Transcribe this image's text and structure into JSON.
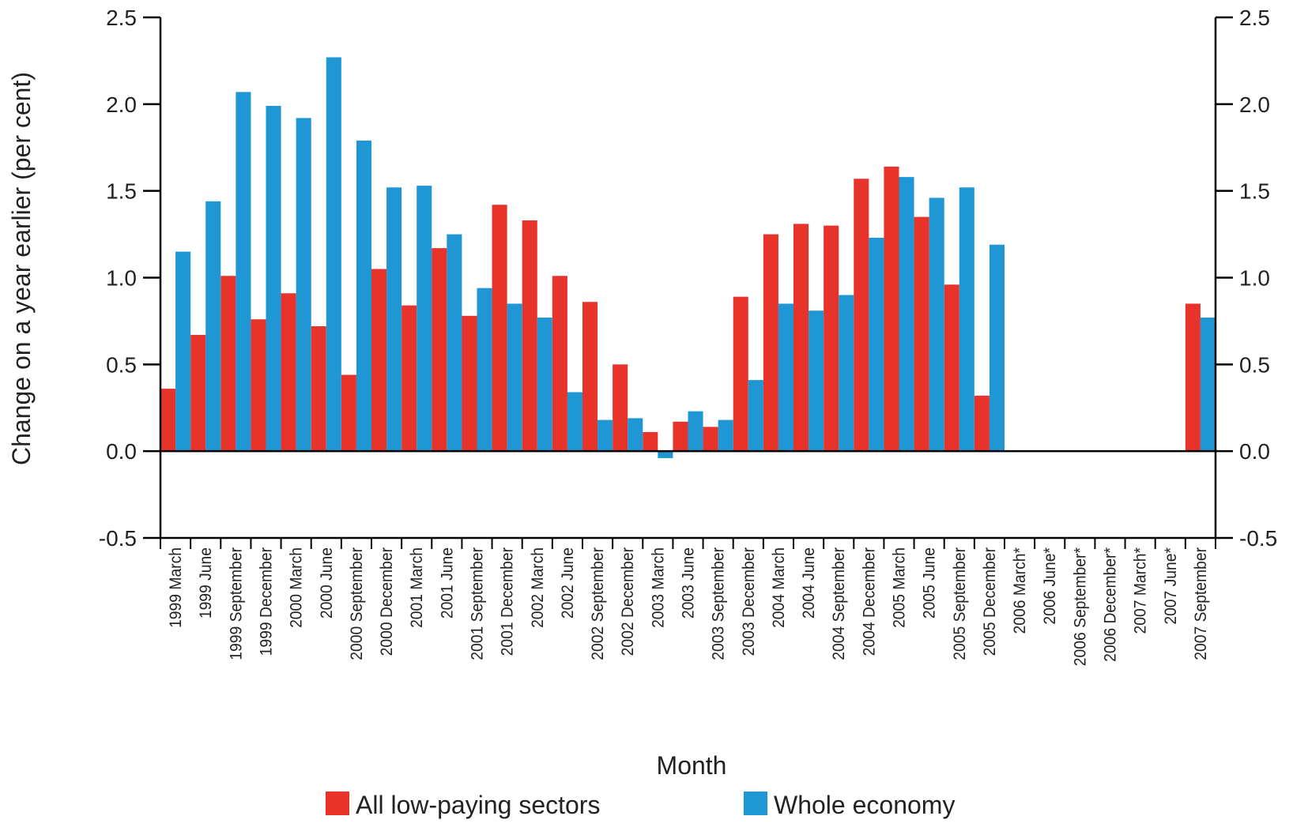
{
  "chart_data": {
    "type": "bar",
    "xlabel": "Month",
    "ylabel": "Change on a year earlier (per cent)",
    "ylim": [
      -0.5,
      2.5
    ],
    "yticks": [
      "2.5",
      "2.0",
      "1.5",
      "1.0",
      "0.5",
      "0.0",
      "-0.5"
    ],
    "ytick_values": [
      2.5,
      2.0,
      1.5,
      1.0,
      0.5,
      0.0,
      -0.5
    ],
    "secondary_y_axis": true,
    "grid": false,
    "legend_position": "bottom",
    "categories": [
      "1999 March",
      "1999 June",
      "1999 September",
      "1999 December",
      "2000 March",
      "2000 June",
      "2000 September",
      "2000 December",
      "2001 March",
      "2001 June",
      "2001 September",
      "2001 December",
      "2002 March",
      "2002 June",
      "2002 September",
      "2002 December",
      "2003 March",
      "2003 June",
      "2003 September",
      "2003 December",
      "2004 March",
      "2004 June",
      "2004 September",
      "2004 December",
      "2005 March",
      "2005 June",
      "2005 September",
      "2005 December",
      "2006 March*",
      "2006 June*",
      "2006 September*",
      "2006 December*",
      "2007 March*",
      "2007 June*",
      "2007 September"
    ],
    "series": [
      {
        "name": "All low-paying sectors",
        "color": "#e8332a",
        "values": [
          0.36,
          0.67,
          1.01,
          0.76,
          0.91,
          0.72,
          0.44,
          1.05,
          0.84,
          1.17,
          0.78,
          1.42,
          1.33,
          1.01,
          0.86,
          0.5,
          0.11,
          0.17,
          0.14,
          0.89,
          1.25,
          1.31,
          1.3,
          1.57,
          1.64,
          1.35,
          0.96,
          0.32,
          null,
          null,
          null,
          null,
          null,
          null,
          0.85
        ]
      },
      {
        "name": "Whole economy",
        "color": "#1f97d4",
        "values": [
          1.15,
          1.44,
          2.07,
          1.99,
          1.92,
          2.27,
          1.79,
          1.52,
          1.53,
          1.25,
          0.94,
          0.85,
          0.77,
          0.34,
          0.18,
          0.19,
          -0.04,
          0.23,
          0.18,
          0.41,
          0.85,
          0.81,
          0.9,
          1.23,
          1.58,
          1.46,
          1.52,
          1.19,
          null,
          null,
          null,
          null,
          null,
          null,
          0.77
        ]
      }
    ]
  }
}
